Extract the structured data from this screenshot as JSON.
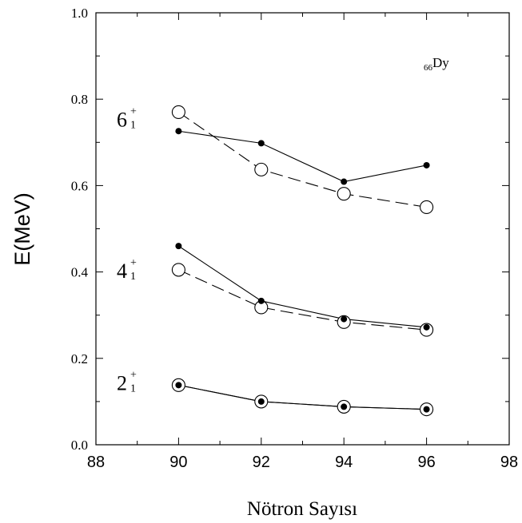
{
  "chart_data": {
    "type": "line",
    "xlabel": "Nötron Sayısı",
    "ylabel": "E(MeV)",
    "xlim": [
      88,
      98
    ],
    "ylim": [
      0.0,
      1.0
    ],
    "x_ticks": [
      "88",
      "90",
      "92",
      "94",
      "96",
      "98"
    ],
    "y_ticks": [
      "0.0",
      "0.2",
      "0.4",
      "0.6",
      "0.8",
      "1.0"
    ],
    "grid": false,
    "annotation": {
      "main": "Dy",
      "prefix": "66"
    },
    "level_labels": [
      {
        "base": "6",
        "sup": "+",
        "sub": "1",
        "y": 0.755
      },
      {
        "base": "4",
        "sup": "+",
        "sub": "1",
        "y": 0.405
      },
      {
        "base": "2",
        "sup": "+",
        "sub": "1",
        "y": 0.145
      }
    ],
    "x": [
      90,
      92,
      94,
      96
    ],
    "series": [
      {
        "level": "6",
        "marker": "filled",
        "line": "solid",
        "values": [
          0.726,
          0.698,
          0.609,
          0.647
        ]
      },
      {
        "level": "6",
        "marker": "open",
        "line": "dashed",
        "values": [
          0.77,
          0.637,
          0.581,
          0.55
        ]
      },
      {
        "level": "4",
        "marker": "filled",
        "line": "solid",
        "values": [
          0.46,
          0.333,
          0.291,
          0.272
        ]
      },
      {
        "level": "4",
        "marker": "open",
        "line": "dashed",
        "values": [
          0.405,
          0.318,
          0.284,
          0.266
        ]
      },
      {
        "level": "2",
        "marker": "filled",
        "line": "solid",
        "values": [
          0.138,
          0.1,
          0.088,
          0.082
        ]
      },
      {
        "level": "2",
        "marker": "open",
        "line": "solid",
        "values": [
          0.138,
          0.1,
          0.088,
          0.082
        ]
      }
    ]
  }
}
